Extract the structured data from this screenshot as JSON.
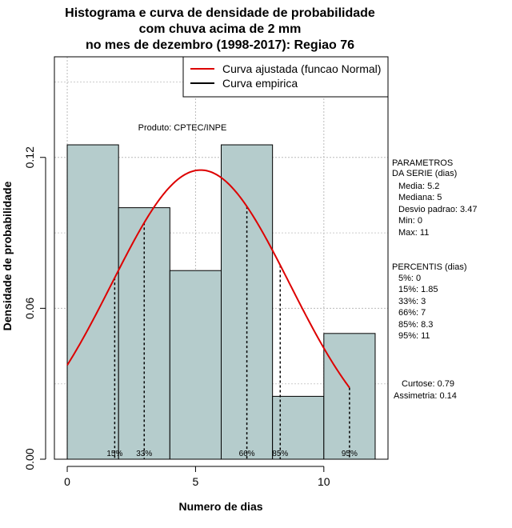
{
  "chart_data": {
    "type": "bar",
    "title_lines": [
      "Histograma e curva de densidade de probabilidade",
      "com chuva acima de 2 mm",
      "no mes de dezembro (1998-2017): Regiao 76"
    ],
    "xlabel": "Numero de dias",
    "ylabel": "Densidade de probabilidade",
    "xlim": [
      -0.5,
      12.5
    ],
    "ylim": [
      0,
      0.16
    ],
    "x_ticks": [
      0,
      5,
      10
    ],
    "x_tick_labels": [
      "0",
      "5",
      "10"
    ],
    "y_ticks": [
      0.0,
      0.06,
      0.12
    ],
    "y_tick_labels": [
      "0.00",
      "0.06",
      "0.12"
    ],
    "grid_x": [
      0,
      5,
      10
    ],
    "grid_y": [
      0.0,
      0.06,
      0.12
    ],
    "bar_color": "#b5cccc",
    "bars": [
      {
        "x0": 0,
        "x1": 2,
        "value": 0.125
      },
      {
        "x0": 2,
        "x1": 4,
        "value": 0.1
      },
      {
        "x0": 4,
        "x1": 6,
        "value": 0.075
      },
      {
        "x0": 6,
        "x1": 8,
        "value": 0.125
      },
      {
        "x0": 8,
        "x1": 10,
        "value": 0.025
      },
      {
        "x0": 10,
        "x1": 12,
        "value": 0.05
      }
    ],
    "fitted_curve": {
      "name": "Curva ajustada (funcao Normal)",
      "color": "#dd0000",
      "mean": 5.2,
      "sd": 3.47,
      "x_from": 0,
      "x_to": 11
    },
    "empirical_curve": {
      "name": "Curva empirica",
      "color": "#000000"
    },
    "percentile_lines": [
      {
        "label": "15%",
        "x": 1.85
      },
      {
        "label": "33%",
        "x": 3
      },
      {
        "label": "66%",
        "x": 7
      },
      {
        "label": "85%",
        "x": 8.3
      },
      {
        "label": "95%",
        "x": 11
      }
    ],
    "annotation": "Produto: CPTEC/INPE",
    "side_panel": {
      "params_title": [
        "PARAMETROS",
        "DA SERIE (dias)"
      ],
      "params": [
        "Media: 5.2",
        "Mediana: 5",
        "Desvio padrao: 3.47",
        "Min: 0",
        "Max: 11"
      ],
      "percentis_title": "PERCENTIS (dias)",
      "percentis": [
        "5%: 0",
        "15%: 1.85",
        "33%: 3",
        "66%: 7",
        "85%: 8.3",
        "95%: 11"
      ],
      "curtose": "Curtose: 0.79",
      "assimetria": "Assimetria: 0.14"
    }
  }
}
